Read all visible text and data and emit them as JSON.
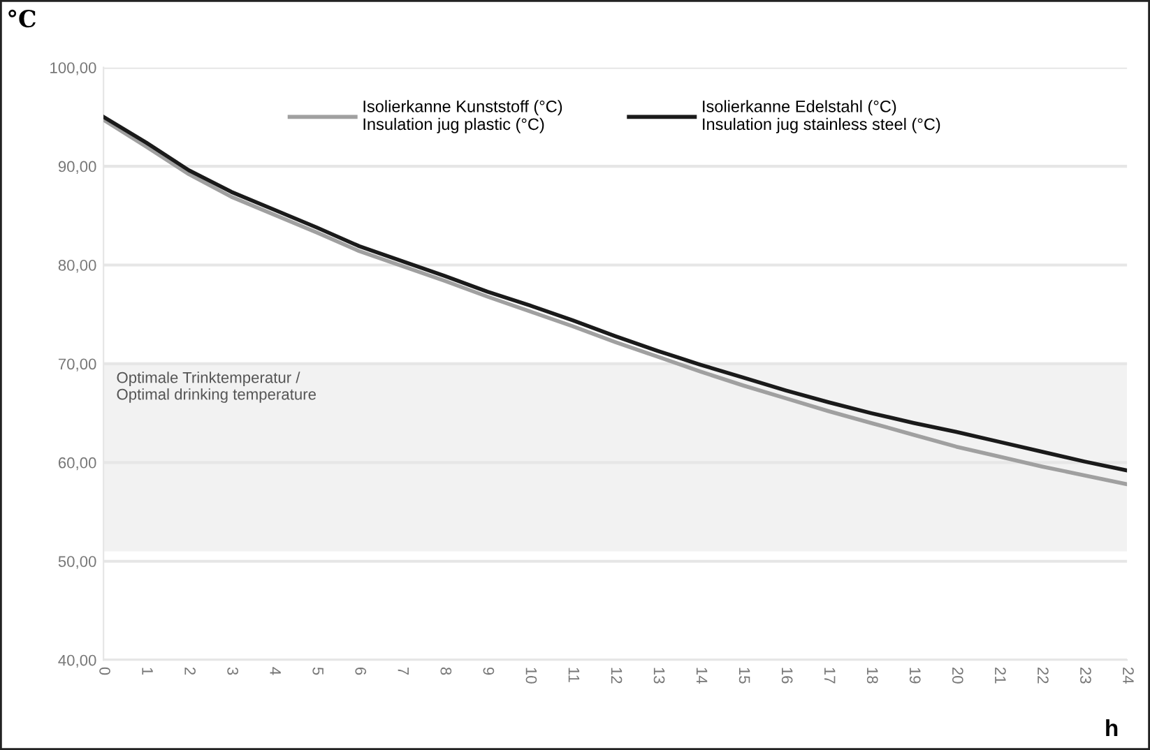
{
  "chart_data": {
    "type": "line",
    "xlabel": "h",
    "ylabel": "°C",
    "x": [
      0,
      1,
      2,
      3,
      4,
      5,
      6,
      7,
      8,
      9,
      10,
      11,
      12,
      13,
      14,
      15,
      16,
      17,
      18,
      19,
      20,
      21,
      22,
      23,
      24
    ],
    "series": [
      {
        "name": "Isolierkanne Kunststoff (°C)\nInsulation jug plastic (°C)",
        "color": "#a0a0a0",
        "values": [
          94.7,
          92.0,
          89.2,
          86.9,
          85.1,
          83.3,
          81.4,
          79.9,
          78.4,
          76.8,
          75.3,
          73.8,
          72.2,
          70.7,
          69.2,
          67.8,
          66.5,
          65.2,
          64.0,
          62.8,
          61.6,
          60.6,
          59.6,
          58.7,
          57.8
        ]
      },
      {
        "name": "Isolierkanne Edelstahl (°C)\nInsulation jug stainless steel (°C)",
        "color": "#1a1a1a",
        "values": [
          95.0,
          92.4,
          89.6,
          87.4,
          85.6,
          83.8,
          81.9,
          80.4,
          78.9,
          77.3,
          75.9,
          74.4,
          72.8,
          71.3,
          69.9,
          68.6,
          67.3,
          66.1,
          65.0,
          64.0,
          63.1,
          62.1,
          61.1,
          60.1,
          59.2
        ]
      }
    ],
    "xlim": [
      0,
      24
    ],
    "xticks": [
      0,
      1,
      2,
      3,
      4,
      5,
      6,
      7,
      8,
      9,
      10,
      11,
      12,
      13,
      14,
      15,
      16,
      17,
      18,
      19,
      20,
      21,
      22,
      23,
      24
    ],
    "ylim": [
      40,
      100
    ],
    "yticks": [
      {
        "value": 40,
        "label": "40,00"
      },
      {
        "value": 50,
        "label": "50,00"
      },
      {
        "value": 60,
        "label": "60,00"
      },
      {
        "value": 70,
        "label": "70,00"
      },
      {
        "value": 80,
        "label": "80,00"
      },
      {
        "value": 90,
        "label": "90,00"
      },
      {
        "value": 100,
        "label": "100,00"
      }
    ],
    "bands": [
      {
        "axis": "y",
        "from": 51,
        "to": 70,
        "label": "Optimale Trinktemperatur /\nOptimal drinking temperature",
        "color": "#f2f2f2"
      }
    ],
    "grid": "y",
    "legend": "top",
    "marker": "none",
    "line_style": "solid"
  }
}
